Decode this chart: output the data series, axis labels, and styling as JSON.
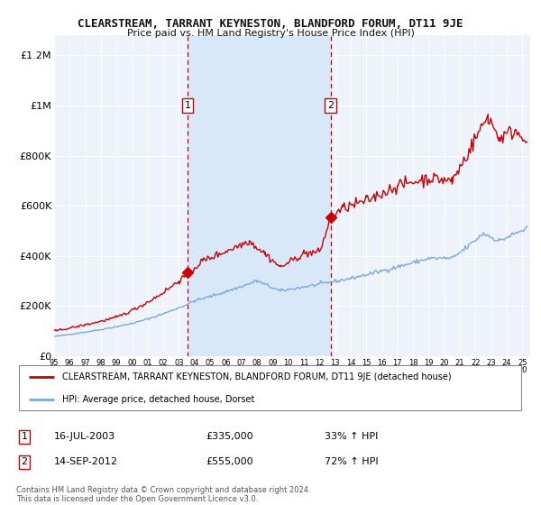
{
  "title": "CLEARSTREAM, TARRANT KEYNESTON, BLANDFORD FORUM, DT11 9JE",
  "subtitle": "Price paid vs. HM Land Registry's House Price Index (HPI)",
  "ylabel_ticks": [
    "£0",
    "£200K",
    "£400K",
    "£600K",
    "£800K",
    "£1M",
    "£1.2M"
  ],
  "ytick_values": [
    0,
    200000,
    400000,
    600000,
    800000,
    1000000,
    1200000
  ],
  "ylim": [
    0,
    1280000
  ],
  "bg_color": "#ffffff",
  "plot_bg_color": "#eef2fb",
  "grid_color": "#ffffff",
  "shade_color": "#d8e8f8",
  "sale1_date_x": 2003.54,
  "sale1_price": 335000,
  "sale2_date_x": 2012.71,
  "sale2_price": 555000,
  "vline1_x": 2003.54,
  "vline2_x": 2012.71,
  "red_line_color": "#cc0000",
  "blue_line_color": "#7aaadd",
  "marker_color": "#cc0000",
  "vline_color": "#cc0000",
  "legend_red_label": "CLEARSTREAM, TARRANT KEYNESTON, BLANDFORD FORUM, DT11 9JE (detached house)",
  "legend_blue_label": "HPI: Average price, detached house, Dorset",
  "annotation1_num": "1",
  "annotation1_date": "16-JUL-2003",
  "annotation1_price": "£335,000",
  "annotation1_hpi": "33% ↑ HPI",
  "annotation2_num": "2",
  "annotation2_date": "14-SEP-2012",
  "annotation2_price": "£555,000",
  "annotation2_hpi": "72% ↑ HPI",
  "footer": "Contains HM Land Registry data © Crown copyright and database right 2024.\nThis data is licensed under the Open Government Licence v3.0.",
  "xlim_start": 1995.0,
  "xlim_end": 2025.5
}
